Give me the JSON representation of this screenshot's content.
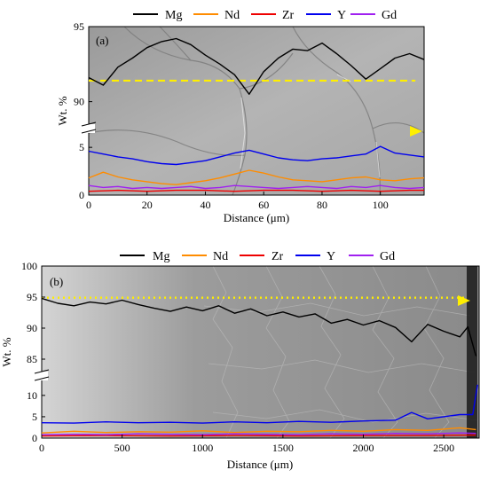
{
  "chart_data": [
    {
      "type": "line",
      "panel_label": "(a)",
      "xlabel": "Distance (μm)",
      "ylabel": "Wt. %",
      "xlim": [
        0,
        115
      ],
      "x_ticks": [
        "0",
        "20",
        "40",
        "60",
        "80",
        "100"
      ],
      "ylim_upper": [
        88.5,
        95
      ],
      "upper_ticks": [
        "90",
        "95"
      ],
      "ylim_lower": [
        0,
        6.5
      ],
      "lower_ticks": [
        "0",
        "5"
      ],
      "axis_break": true,
      "legend_placement": "top",
      "background": "SEM micrograph",
      "scan_line": {
        "color": "#ffef00",
        "style": "dashed"
      },
      "series": [
        {
          "name": "Mg",
          "color": "#000000",
          "x": [
            0,
            5,
            10,
            15,
            20,
            25,
            30,
            35,
            40,
            45,
            50,
            55,
            60,
            65,
            70,
            75,
            80,
            85,
            90,
            95,
            100,
            105,
            110,
            115
          ],
          "y": [
            91.6,
            91.1,
            92.3,
            92.9,
            93.6,
            94.0,
            94.2,
            93.8,
            93.1,
            92.5,
            91.8,
            90.5,
            92.0,
            92.9,
            93.5,
            93.4,
            93.9,
            93.2,
            92.4,
            91.5,
            92.2,
            92.9,
            93.2,
            92.8
          ]
        },
        {
          "name": "Nd",
          "color": "#ff8c00",
          "x": [
            0,
            5,
            10,
            15,
            20,
            25,
            30,
            35,
            40,
            45,
            50,
            55,
            60,
            65,
            70,
            75,
            80,
            85,
            90,
            95,
            100,
            105,
            110,
            115
          ],
          "y": [
            1.8,
            2.4,
            1.9,
            1.6,
            1.4,
            1.2,
            1.1,
            1.3,
            1.5,
            1.8,
            2.2,
            2.6,
            2.3,
            1.9,
            1.6,
            1.5,
            1.4,
            1.6,
            1.8,
            1.9,
            1.6,
            1.5,
            1.7,
            1.8
          ]
        },
        {
          "name": "Zr",
          "color": "#ee0000",
          "x": [
            0,
            10,
            20,
            30,
            40,
            50,
            60,
            70,
            80,
            90,
            100,
            110,
            115
          ],
          "y": [
            0.4,
            0.5,
            0.4,
            0.5,
            0.5,
            0.4,
            0.5,
            0.5,
            0.4,
            0.5,
            0.4,
            0.5,
            0.5
          ]
        },
        {
          "name": "Y",
          "color": "#0000ee",
          "x": [
            0,
            5,
            10,
            15,
            20,
            25,
            30,
            35,
            40,
            45,
            50,
            55,
            60,
            65,
            70,
            75,
            80,
            85,
            90,
            95,
            100,
            105,
            110,
            115
          ],
          "y": [
            4.6,
            4.3,
            4.0,
            3.8,
            3.5,
            3.3,
            3.2,
            3.4,
            3.6,
            4.0,
            4.4,
            4.7,
            4.3,
            3.9,
            3.7,
            3.6,
            3.8,
            3.9,
            4.1,
            4.3,
            5.1,
            4.4,
            4.2,
            4.0
          ]
        },
        {
          "name": "Gd",
          "color": "#a020f0",
          "x": [
            0,
            5,
            10,
            15,
            20,
            25,
            30,
            35,
            40,
            45,
            50,
            55,
            60,
            65,
            70,
            75,
            80,
            85,
            90,
            95,
            100,
            105,
            110,
            115
          ],
          "y": [
            1.0,
            0.8,
            0.9,
            0.7,
            0.8,
            0.7,
            0.8,
            0.9,
            0.7,
            0.8,
            1.0,
            0.9,
            0.8,
            0.7,
            0.8,
            0.9,
            0.8,
            0.7,
            0.9,
            0.8,
            1.0,
            0.8,
            0.7,
            0.8
          ]
        }
      ]
    },
    {
      "type": "line",
      "panel_label": "(b)",
      "xlabel": "Distance (μm)",
      "ylabel": "Wt. %",
      "xlim": [
        0,
        2720
      ],
      "x_ticks": [
        "0",
        "500",
        "1000",
        "1500",
        "2000",
        "2500"
      ],
      "ylim_upper": [
        83,
        100
      ],
      "upper_ticks": [
        "85",
        "90",
        "95",
        "100"
      ],
      "ylim_lower": [
        0,
        13.5
      ],
      "lower_ticks": [
        "0",
        "5",
        "10"
      ],
      "axis_break": true,
      "legend_placement": "top",
      "background": "SEM micrograph",
      "scan_line": {
        "color": "#ffef00",
        "style": "dotted"
      },
      "series": [
        {
          "name": "Mg",
          "color": "#000000",
          "x": [
            0,
            100,
            200,
            300,
            400,
            500,
            600,
            700,
            800,
            900,
            1000,
            1100,
            1200,
            1300,
            1400,
            1500,
            1600,
            1700,
            1800,
            1900,
            2000,
            2100,
            2200,
            2300,
            2400,
            2500,
            2600,
            2650,
            2700
          ],
          "y": [
            94.8,
            94.0,
            93.6,
            94.2,
            93.9,
            94.5,
            93.8,
            93.2,
            92.7,
            93.4,
            92.8,
            93.6,
            92.4,
            93.1,
            92.0,
            92.6,
            91.8,
            92.3,
            90.8,
            91.4,
            90.5,
            91.2,
            90.1,
            87.8,
            90.6,
            89.5,
            88.6,
            90.2,
            85.5
          ]
        },
        {
          "name": "Nd",
          "color": "#ff8c00",
          "x": [
            0,
            200,
            400,
            600,
            800,
            1000,
            1200,
            1400,
            1600,
            1800,
            2000,
            2200,
            2400,
            2600,
            2700
          ],
          "y": [
            1.2,
            1.6,
            1.3,
            1.5,
            1.4,
            1.7,
            1.3,
            1.6,
            1.5,
            1.8,
            1.6,
            2.0,
            1.8,
            2.4,
            2.0
          ]
        },
        {
          "name": "Zr",
          "color": "#ee0000",
          "x": [
            0,
            400,
            800,
            1200,
            1600,
            2000,
            2400,
            2700
          ],
          "y": [
            0.5,
            0.6,
            0.5,
            0.6,
            0.5,
            0.6,
            0.6,
            0.7
          ]
        },
        {
          "name": "Y",
          "color": "#0000ee",
          "x": [
            0,
            200,
            400,
            600,
            800,
            1000,
            1200,
            1400,
            1600,
            1800,
            2000,
            2200,
            2300,
            2400,
            2500,
            2600,
            2680,
            2710
          ],
          "y": [
            3.6,
            3.5,
            3.8,
            3.6,
            3.7,
            3.5,
            3.8,
            3.6,
            3.9,
            3.7,
            4.0,
            4.2,
            6.0,
            4.5,
            5.0,
            5.5,
            5.5,
            12.5
          ]
        },
        {
          "name": "Gd",
          "color": "#a020f0",
          "x": [
            0,
            200,
            400,
            600,
            800,
            1000,
            1200,
            1400,
            1600,
            1800,
            2000,
            2200,
            2400,
            2600,
            2700
          ],
          "y": [
            0.8,
            0.9,
            0.8,
            1.0,
            0.9,
            0.8,
            1.0,
            0.9,
            0.8,
            1.0,
            0.9,
            1.1,
            1.0,
            1.2,
            1.1
          ]
        }
      ]
    }
  ]
}
